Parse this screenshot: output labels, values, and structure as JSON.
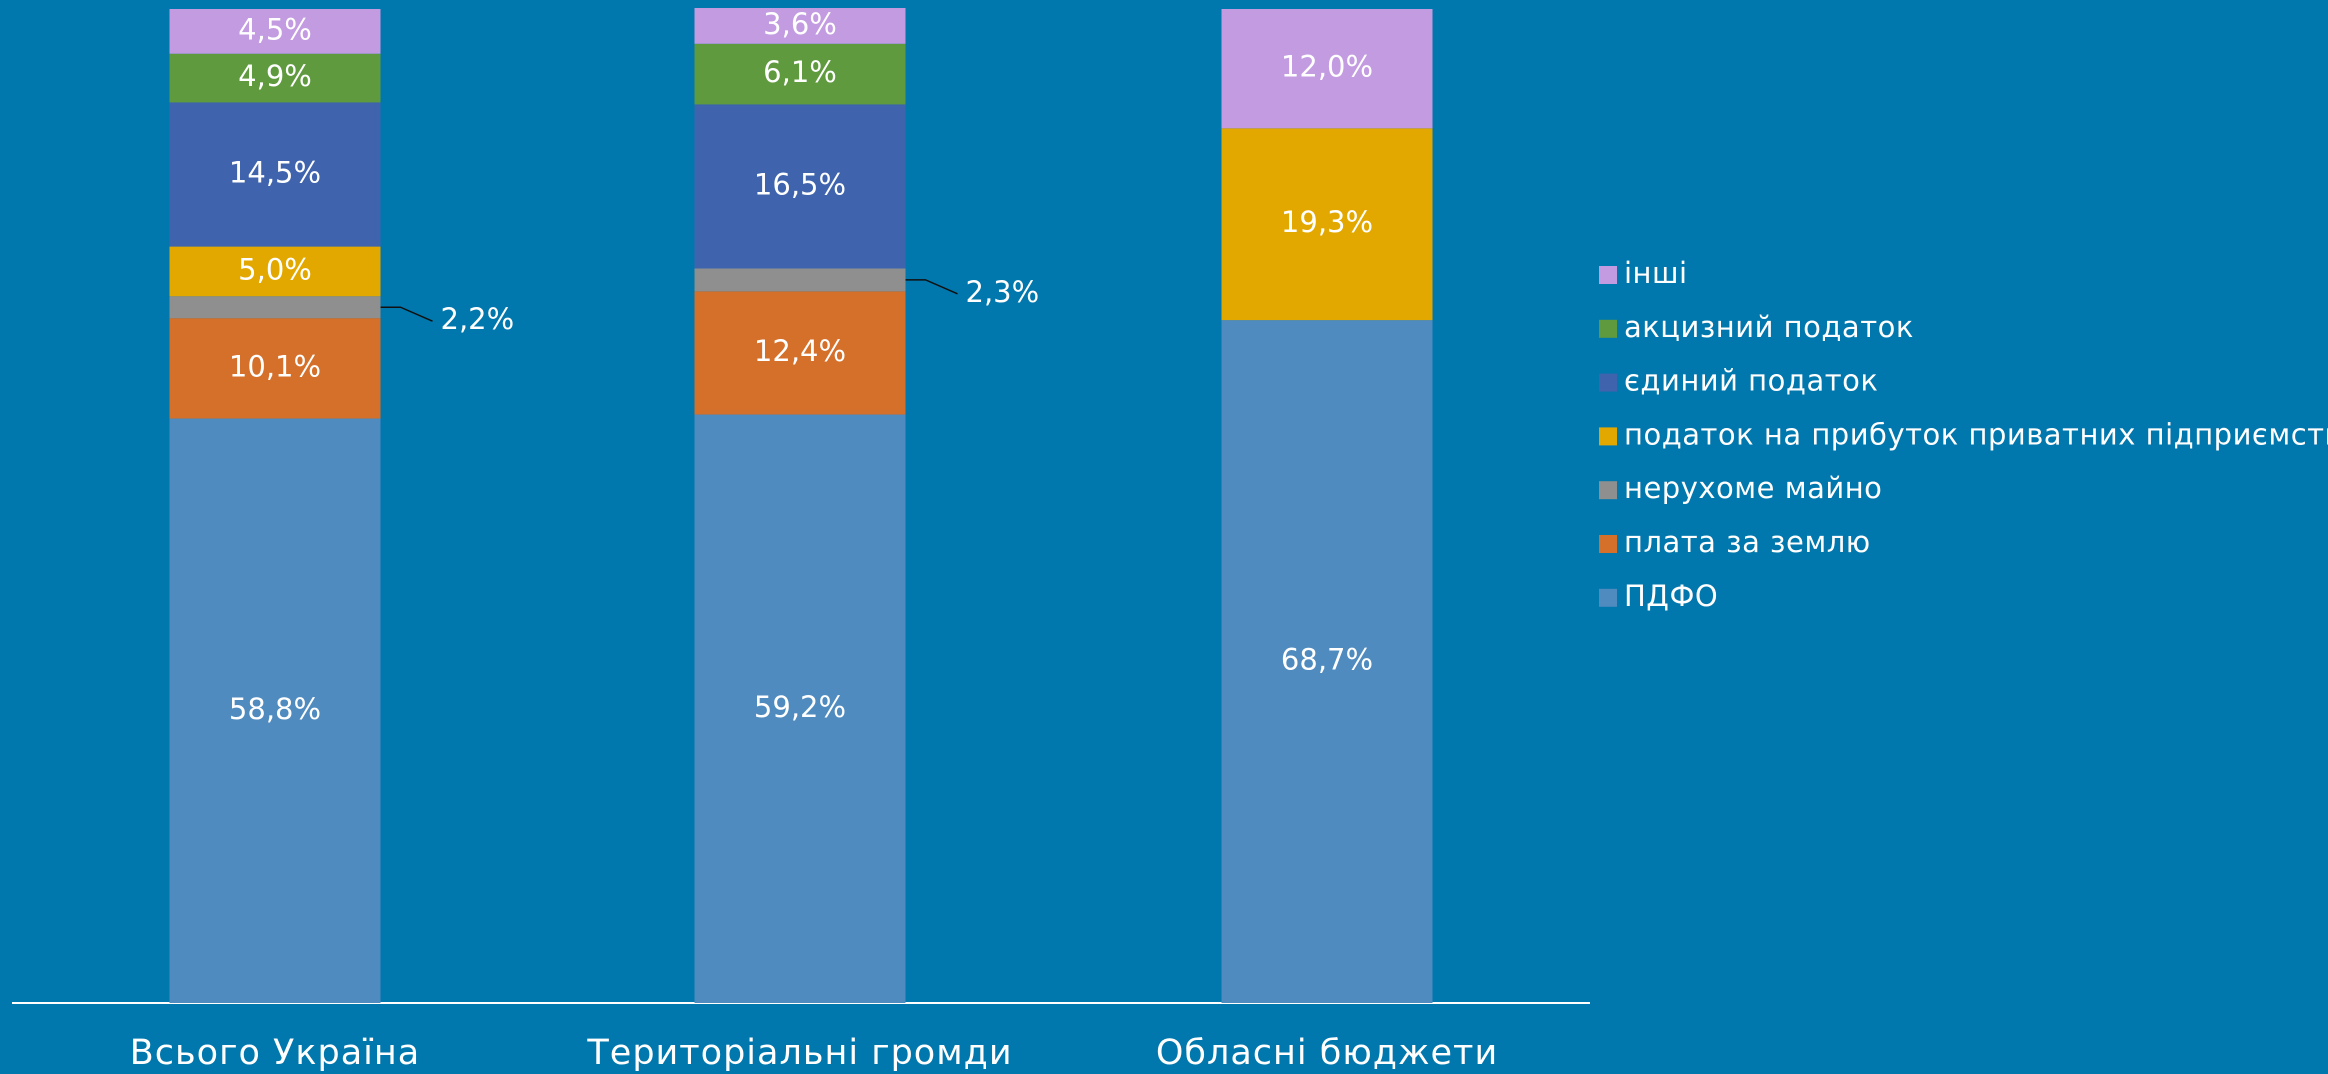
{
  "chart_data": {
    "type": "stacked_bar",
    "categories": [
      "Всього Україна",
      "Територіальні громди",
      "Обласні бюджети"
    ],
    "ylim": [
      0,
      100
    ],
    "series": [
      {
        "name": "ПДФО",
        "color": "#4f8bbf",
        "values": [
          58.8,
          59.2,
          68.7
        ],
        "value_labels": [
          "58,8%",
          "59,2%",
          "68,7%"
        ]
      },
      {
        "name": "плата за землю",
        "color": "#d4702a",
        "values": [
          10.1,
          12.4,
          null
        ],
        "value_labels": [
          "10,1%",
          "12,4%",
          null
        ]
      },
      {
        "name": "нерухоме майно",
        "color": "#8f8f8f",
        "values": [
          2.2,
          2.3,
          null
        ],
        "value_labels": [
          "2,2%",
          "2,3%",
          null
        ]
      },
      {
        "name": "податок на прибуток приватних підприємств",
        "color": "#e3a800",
        "values": [
          5.0,
          null,
          19.3
        ],
        "value_labels": [
          "5,0%",
          null,
          "19,3%"
        ]
      },
      {
        "name": "єдиний податок",
        "color": "#3f64ad",
        "values": [
          14.5,
          16.5,
          null
        ],
        "value_labels": [
          "14,5%",
          "16,5%",
          null
        ]
      },
      {
        "name": "акцизний податок",
        "color": "#5f9a3e",
        "values": [
          4.9,
          6.1,
          null
        ],
        "value_labels": [
          "4,9%",
          "6,1%",
          null
        ]
      },
      {
        "name": "інші",
        "color": "#c39be0",
        "values": [
          4.5,
          3.6,
          12.0
        ],
        "value_labels": [
          "4,5%",
          "3,6%",
          "12,0%"
        ]
      }
    ]
  }
}
